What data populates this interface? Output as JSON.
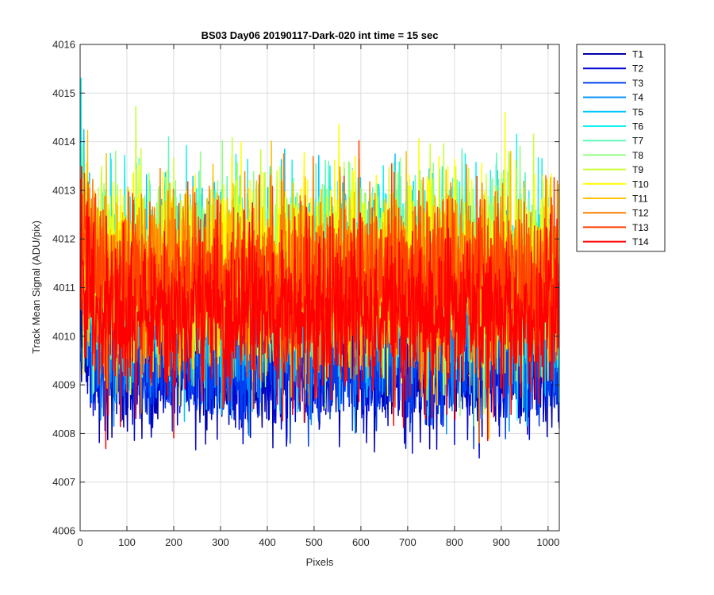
{
  "chart_data": {
    "type": "line",
    "title": "BS03 Day06 20190117-Dark-020 int time = 15 sec",
    "xlabel": "Pixels",
    "ylabel": "Track Mean Signal (ADU/pix)",
    "xlim": [
      0,
      1024
    ],
    "ylim": [
      4006,
      4016
    ],
    "xticks": [
      0,
      100,
      200,
      300,
      400,
      500,
      600,
      700,
      800,
      900,
      1000
    ],
    "yticks": [
      4006,
      4007,
      4008,
      4009,
      4010,
      4011,
      4012,
      4013,
      4014,
      4015,
      4016
    ],
    "grid": true,
    "legend_position": "outside-top-right",
    "x_start": 1,
    "x_end": 1024,
    "series": [
      {
        "name": "T1",
        "color": "#0000a8",
        "mean": 4009.3,
        "spread": 0.62
      },
      {
        "name": "T2",
        "color": "#0008d8",
        "mean": 4009.4,
        "spread": 0.62
      },
      {
        "name": "T3",
        "color": "#0040f0",
        "mean": 4009.5,
        "spread": 0.62
      },
      {
        "name": "T4",
        "color": "#0090f8",
        "mean": 4010.5,
        "spread": 0.85
      },
      {
        "name": "T5",
        "color": "#00c8ff",
        "mean": 4011.0,
        "spread": 1.0
      },
      {
        "name": "T6",
        "color": "#18f0f0",
        "mean": 4011.3,
        "spread": 1.0
      },
      {
        "name": "T7",
        "color": "#60f8b8",
        "mean": 4011.4,
        "spread": 0.95
      },
      {
        "name": "T8",
        "color": "#90ff80",
        "mean": 4011.3,
        "spread": 0.9
      },
      {
        "name": "T9",
        "color": "#c8ff38",
        "mean": 4011.4,
        "spread": 0.9
      },
      {
        "name": "T10",
        "color": "#ffff00",
        "mean": 4011.4,
        "spread": 0.9
      },
      {
        "name": "T11",
        "color": "#ffc000",
        "mean": 4011.2,
        "spread": 0.9
      },
      {
        "name": "T12",
        "color": "#ff8000",
        "mean": 4011.2,
        "spread": 0.9
      },
      {
        "name": "T13",
        "color": "#ff4000",
        "mean": 4011.0,
        "spread": 0.88
      },
      {
        "name": "T14",
        "color": "#ff0000",
        "mean": 4010.5,
        "spread": 0.85
      }
    ]
  }
}
